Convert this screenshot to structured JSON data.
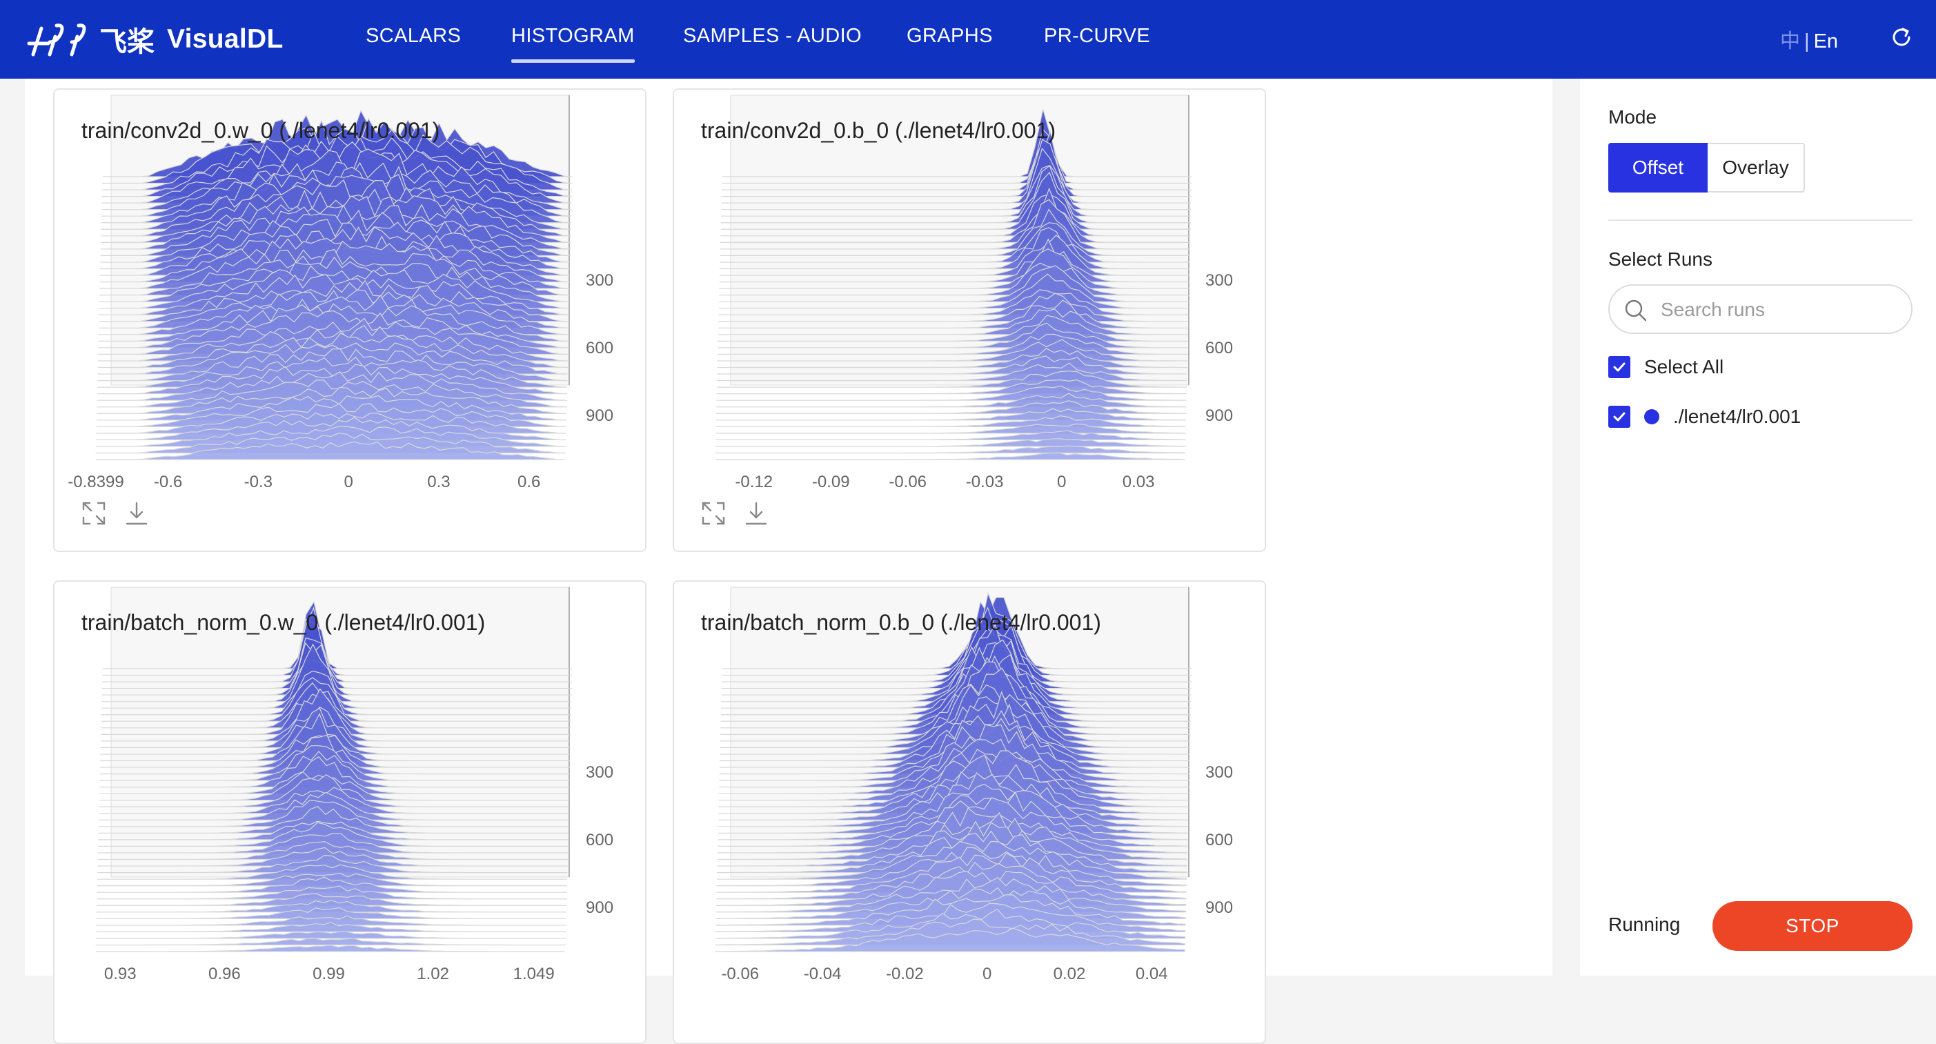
{
  "header": {
    "logo_cn": "飞桨",
    "app_name": "VisualDL",
    "nav": [
      {
        "label": "SCALARS"
      },
      {
        "label": "HISTOGRAM"
      },
      {
        "label": "SAMPLES - AUDIO"
      },
      {
        "label": "GRAPHS"
      },
      {
        "label": "PR-CURVE"
      }
    ],
    "active_tab": "HISTOGRAM",
    "lang_zh": "中",
    "lang_sep": "|",
    "lang_en": "En",
    "refresh_icon": "refresh-icon"
  },
  "cards": [
    {
      "title": "train/conv2d_0.w_0 (./lenet4/lr0.001)"
    },
    {
      "title": "train/conv2d_0.b_0 (./lenet4/lr0.001)"
    },
    {
      "title": "train/batch_norm_0.w_0 (./lenet4/lr0.001)"
    },
    {
      "title": "train/batch_norm_0.b_0 (./lenet4/lr0.001)"
    }
  ],
  "chart_data": [
    {
      "type": "area",
      "title": "train/conv2d_0.w_0 (./lenet4/lr0.001)",
      "mode": "offset",
      "x_ticks": [
        "-0.8399",
        "-0.6",
        "-0.3",
        "0",
        "0.3",
        "0.6"
      ],
      "x_tick_values": [
        -0.8399,
        -0.6,
        -0.3,
        0,
        0.3,
        0.6
      ],
      "xlim": [
        -0.8399,
        0.72
      ],
      "y_ticks": [
        "300",
        "600",
        "900"
      ],
      "step_range": [
        0,
        950
      ],
      "shape": "plateau",
      "center": 0,
      "width": 0.7,
      "peak": 0.5,
      "fill_color": "#4452c9",
      "grid_color": "#d8d8d8"
    },
    {
      "type": "area",
      "title": "train/conv2d_0.b_0 (./lenet4/lr0.001)",
      "mode": "offset",
      "x_ticks": [
        "-0.12",
        "-0.09",
        "-0.06",
        "-0.03",
        "0",
        "0.03"
      ],
      "x_tick_values": [
        -0.12,
        -0.09,
        -0.06,
        -0.03,
        0,
        0.03
      ],
      "xlim": [
        -0.135,
        0.048
      ],
      "y_ticks": [
        "300",
        "600",
        "900"
      ],
      "step_range": [
        0,
        950
      ],
      "shape": "drift",
      "center": 0,
      "width": 0.01,
      "peak": 0.6,
      "fill_color": "#4452c9",
      "grid_color": "#d8d8d8"
    },
    {
      "type": "area",
      "title": "train/batch_norm_0.w_0 (./lenet4/lr0.001)",
      "mode": "offset",
      "x_ticks": [
        "0.93",
        "0.96",
        "0.99",
        "1.02",
        "1.049"
      ],
      "x_tick_values": [
        0.93,
        0.96,
        0.99,
        1.02,
        1.049
      ],
      "xlim": [
        0.923,
        1.058
      ],
      "y_ticks": [
        "300",
        "600",
        "900"
      ],
      "step_range": [
        0,
        950
      ],
      "shape": "drift",
      "center": 0.99,
      "width": 0.008,
      "peak": 0.6,
      "fill_color": "#4452c9",
      "grid_color": "#d8d8d8"
    },
    {
      "type": "area",
      "title": "train/batch_norm_0.b_0 (./lenet4/lr0.001)",
      "mode": "offset",
      "x_ticks": [
        "-0.06",
        "-0.04",
        "-0.02",
        "0",
        "0.02",
        "0.04"
      ],
      "x_tick_values": [
        -0.06,
        -0.04,
        -0.02,
        0,
        0.02,
        0.04
      ],
      "xlim": [
        -0.066,
        0.048
      ],
      "y_ticks": [
        "300",
        "600",
        "900"
      ],
      "step_range": [
        0,
        950
      ],
      "shape": "spread",
      "center": 0,
      "width": 0.006,
      "peak": 0.7,
      "fill_color": "#4452c9",
      "grid_color": "#d8d8d8"
    }
  ],
  "card_tools": {
    "fullscreen_icon": "fullscreen-icon",
    "download_icon": "download-icon"
  },
  "sidebar": {
    "mode_label": "Mode",
    "mode_options": [
      "Offset",
      "Overlay"
    ],
    "mode_selected": "Offset",
    "select_runs_label": "Select Runs",
    "search_placeholder": "Search runs",
    "select_all_label": "Select All",
    "runs": [
      {
        "name": "./lenet4/lr0.001",
        "color": "#2932e1",
        "checked": true
      }
    ],
    "running_label": "Running",
    "stop_label": "STOP"
  },
  "colors": {
    "header": "#0f32c0",
    "accent": "#2932e1",
    "stop": "#ec4627"
  }
}
